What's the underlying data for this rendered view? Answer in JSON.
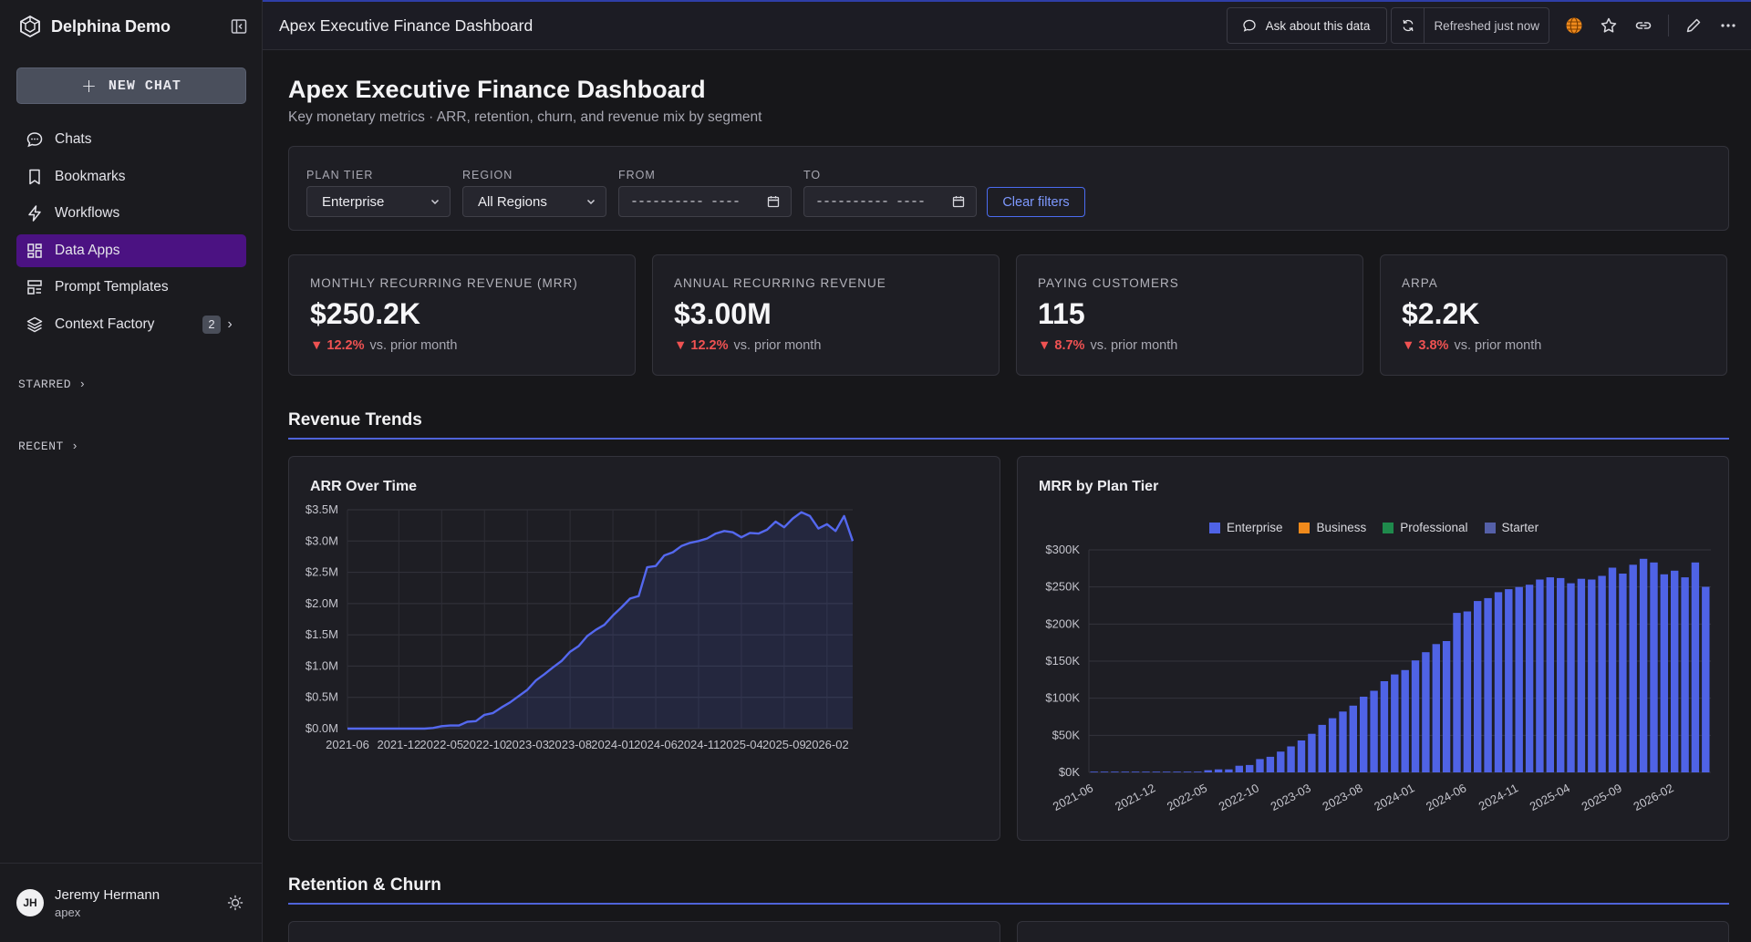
{
  "sidebar": {
    "brand": "Delphina Demo",
    "new_chat": "NEW CHAT",
    "items": [
      {
        "label": "Chats",
        "icon": "chat-bubble-icon"
      },
      {
        "label": "Bookmarks",
        "icon": "bookmark-icon"
      },
      {
        "label": "Workflows",
        "icon": "lightning-icon"
      },
      {
        "label": "Data Apps",
        "icon": "grid-icon"
      },
      {
        "label": "Prompt Templates",
        "icon": "template-icon"
      },
      {
        "label": "Context Factory",
        "icon": "layers-icon",
        "badge": "2"
      }
    ],
    "starred": "STARRED",
    "recent": "RECENT",
    "user": {
      "initials": "JH",
      "name": "Jeremy Hermann",
      "org": "apex"
    }
  },
  "topbar": {
    "title": "Apex Executive Finance Dashboard",
    "ask": "Ask about this data",
    "refreshed": "Refreshed just now"
  },
  "page": {
    "title": "Apex Executive Finance Dashboard",
    "subtitle": "Key monetary metrics · ARR, retention, churn, and revenue mix by segment"
  },
  "filters": {
    "plan_tier": {
      "label": "PLAN TIER",
      "value": "Enterprise"
    },
    "region": {
      "label": "REGION",
      "value": "All Regions"
    },
    "from": {
      "label": "FROM",
      "value": "----------  ----"
    },
    "to": {
      "label": "TO",
      "value": "----------  ----"
    },
    "clear": "Clear filters"
  },
  "kpis": [
    {
      "label": "MONTHLY RECURRING REVENUE (MRR)",
      "value": "$250.2K",
      "delta": "▼ 12.2%",
      "compare": "vs. prior month"
    },
    {
      "label": "ANNUAL RECURRING REVENUE",
      "value": "$3.00M",
      "delta": "▼ 12.2%",
      "compare": "vs. prior month"
    },
    {
      "label": "PAYING CUSTOMERS",
      "value": "115",
      "delta": "▼ 8.7%",
      "compare": "vs. prior month"
    },
    {
      "label": "ARPA",
      "value": "$2.2K",
      "delta": "▼ 3.8%",
      "compare": "vs. prior month"
    }
  ],
  "sections": {
    "revenue": "Revenue Trends",
    "retention": "Retention & Churn"
  },
  "colors": {
    "accent": "#4f63d9",
    "active_nav": "#4b1282",
    "negative": "#f05252",
    "enterprise": "#4f63e6",
    "business": "#f08a1c",
    "professional": "#1f8a4c",
    "starter": "#5560a8"
  },
  "chart_data": [
    {
      "type": "area",
      "title": "ARR Over Time",
      "ylim": [
        0,
        3500000
      ],
      "yticks": [
        "$0.0M",
        "$0.5M",
        "$1.0M",
        "$1.5M",
        "$2.0M",
        "$2.5M",
        "$3.0M",
        "$3.5M"
      ],
      "xticks": [
        "2021-06",
        "2021-12",
        "2022-05",
        "2022-10",
        "2023-03",
        "2023-08",
        "2024-01",
        "2024-06",
        "2024-11",
        "2025-04",
        "2025-09",
        "2026-02"
      ],
      "x": [
        "2021-06",
        "2021-07",
        "2021-08",
        "2021-09",
        "2021-10",
        "2021-11",
        "2021-12",
        "2022-01",
        "2022-02",
        "2022-03",
        "2022-04",
        "2022-05",
        "2022-06",
        "2022-07",
        "2022-08",
        "2022-09",
        "2022-10",
        "2022-11",
        "2022-12",
        "2023-01",
        "2023-02",
        "2023-03",
        "2023-04",
        "2023-05",
        "2023-06",
        "2023-07",
        "2023-08",
        "2023-09",
        "2023-10",
        "2023-11",
        "2023-12",
        "2024-01",
        "2024-02",
        "2024-03",
        "2024-04",
        "2024-05",
        "2024-06",
        "2024-07",
        "2024-08",
        "2024-09",
        "2024-10",
        "2024-11",
        "2024-12",
        "2025-01",
        "2025-02",
        "2025-03",
        "2025-04",
        "2025-05",
        "2025-06",
        "2025-07",
        "2025-08",
        "2025-09",
        "2025-10",
        "2025-11",
        "2025-12",
        "2026-01",
        "2026-02",
        "2026-03",
        "2026-04",
        "2026-05"
      ],
      "values": [
        0,
        0,
        0,
        0,
        0,
        0,
        0,
        0,
        0,
        0,
        10000,
        40000,
        50000,
        50000,
        110000,
        120000,
        220000,
        250000,
        340000,
        420000,
        520000,
        620000,
        770000,
        870000,
        980000,
        1080000,
        1230000,
        1320000,
        1480000,
        1580000,
        1660000,
        1810000,
        1940000,
        2080000,
        2120000,
        2580000,
        2600000,
        2770000,
        2820000,
        2920000,
        2970000,
        3000000,
        3040000,
        3120000,
        3160000,
        3140000,
        3060000,
        3130000,
        3120000,
        3180000,
        3310000,
        3220000,
        3360000,
        3460000,
        3400000,
        3200000,
        3270000,
        3160000,
        3400000,
        3000000
      ]
    },
    {
      "type": "bar",
      "title": "MRR by Plan Tier",
      "ylim": [
        0,
        300000
      ],
      "yticks": [
        "$0K",
        "$50K",
        "$100K",
        "$150K",
        "$200K",
        "$250K",
        "$300K"
      ],
      "xticks": [
        "2021-06",
        "2021-12",
        "2022-05",
        "2022-10",
        "2023-03",
        "2023-08",
        "2024-01",
        "2024-06",
        "2024-11",
        "2025-04",
        "2025-09",
        "2026-02"
      ],
      "legend": [
        "Enterprise",
        "Business",
        "Professional",
        "Starter"
      ],
      "series": [
        {
          "name": "Enterprise",
          "values": [
            0,
            0,
            0,
            0,
            0,
            0,
            0,
            0,
            0,
            0,
            1000,
            3000,
            4000,
            4000,
            9000,
            10000,
            18000,
            21000,
            28000,
            35000,
            43000,
            52000,
            64000,
            73000,
            82000,
            90000,
            102000,
            110000,
            123000,
            132000,
            138000,
            151000,
            162000,
            173000,
            177000,
            215000,
            217000,
            231000,
            235000,
            243000,
            247000,
            250000,
            253000,
            260000,
            263000,
            262000,
            255000,
            261000,
            260000,
            265000,
            276000,
            268000,
            280000,
            288000,
            283000,
            267000,
            272000,
            263000,
            283000,
            250200
          ]
        },
        {
          "name": "Business",
          "values": []
        },
        {
          "name": "Professional",
          "values": []
        },
        {
          "name": "Starter",
          "values": []
        }
      ]
    }
  ]
}
